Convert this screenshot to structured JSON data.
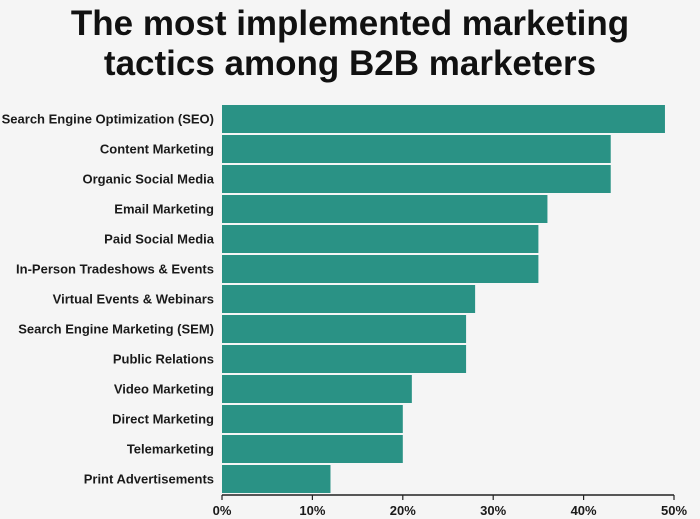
{
  "chart_data": {
    "type": "bar",
    "orientation": "horizontal",
    "title_lines": [
      "The most implemented marketing",
      "tactics among B2B marketers"
    ],
    "categories": [
      "Search Engine Optimization (SEO)",
      "Content Marketing",
      "Organic Social Media",
      "Email Marketing",
      "Paid Social Media",
      "In-Person Tradeshows & Events",
      "Virtual Events & Webinars",
      "Search Engine Marketing (SEM)",
      "Public Relations",
      "Video Marketing",
      "Direct Marketing",
      "Telemarketing",
      "Print Advertisements"
    ],
    "values": [
      49,
      43,
      43,
      36,
      35,
      35,
      28,
      27,
      27,
      21,
      20,
      20,
      12
    ],
    "xlim": [
      0,
      50
    ],
    "xticks": [
      "0%",
      "10%",
      "20%",
      "30%",
      "40%",
      "50%"
    ],
    "grid": false,
    "bar_color": "#2a9285",
    "axis_color": "#222222"
  }
}
